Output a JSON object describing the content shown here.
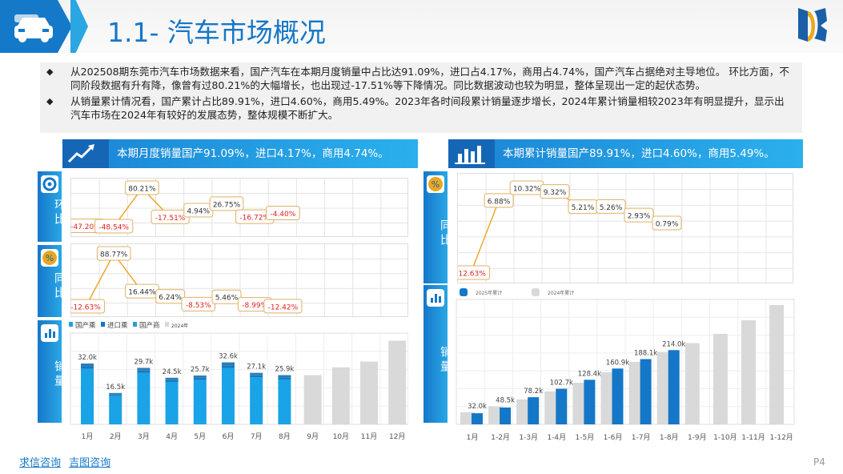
{
  "page_title": "1.1- 汽车市场概况",
  "summary": [
    "从202508期东莞市汽车市场数据来看，国产汽车在本期月度销量中占比达91.09%，进口占4.17%，商用占4.74%，国产汽车占据绝对主导地位。 环比方面，不同阶段数据有升有降，像曾有过80.21%的大幅增长，也出现过-17.51%等下降情况。同比数据波动也较为明显，整体呈现出一定的起伏态势。",
    "从销量累计情况看，国产累计占比89.91%，进口4.60%，商用5.49%。2023年各时间段累计销量逐步增长，2024年累计销量相较2023年有明显提升，显示出汽车市场在2024年有较好的发展态势，整体规模不断扩大。"
  ],
  "left_banner": "本期月度销量国产91.09%，进口4.17%，商用4.74%。",
  "right_banner": "本期累计销量国产89.91%，进口4.60%，商用5.49%。",
  "side_labels": {
    "huanbi": "环比",
    "tongbi": "同比",
    "xiaoliang": "销量",
    "r_tongbi": "同比",
    "r_xiaoliang": "销量"
  },
  "footer": {
    "link1": "求信咨询",
    "link2": "吉图咨询",
    "page": "P4"
  },
  "colors": {
    "primary": "#1577c7",
    "cyan": "#1aa3e6",
    "bar2024": "#d9d9d9",
    "negative": "#e02020"
  },
  "chart_data": [
    {
      "type": "line",
      "id": "monthly_huanbi",
      "categories": [
        "1月",
        "2月",
        "3月",
        "4月",
        "5月",
        "6月",
        "7月",
        "8月"
      ],
      "values": [
        -47.2,
        -48.54,
        80.21,
        -17.51,
        4.94,
        26.75,
        -16.72,
        -4.4
      ],
      "labels": [
        "-47.20%",
        "-48.54%",
        "80.21%",
        "-17.51%",
        "4.94%",
        "26.75%",
        "-16.72%",
        "-4.40%"
      ]
    },
    {
      "type": "line",
      "id": "monthly_tongbi",
      "categories": [
        "1月",
        "2月",
        "3月",
        "4月",
        "5月",
        "6月",
        "7月",
        "8月"
      ],
      "values": [
        -12.63,
        88.77,
        16.44,
        6.24,
        -8.53,
        5.46,
        -8.99,
        -12.42
      ],
      "labels": [
        "-12.63%",
        "88.77%",
        "16.44%",
        "6.24%",
        "-8.53%",
        "5.46%",
        "-8.99%",
        "-12.42%"
      ]
    },
    {
      "type": "bar",
      "id": "monthly_sales",
      "categories": [
        "1月",
        "2月",
        "3月",
        "4月",
        "5月",
        "6月",
        "7月",
        "8月",
        "9月",
        "10月",
        "11月",
        "12月"
      ],
      "legend": [
        "国产乘",
        "进口乘",
        "国产商",
        "2024年"
      ],
      "series": [
        {
          "name": "国产乘",
          "values": [
            29.2,
            15.0,
            27.1,
            22.3,
            23.4,
            29.7,
            24.7,
            23.6,
            null,
            null,
            null,
            null
          ]
        },
        {
          "name": "进口乘",
          "values": [
            1.3,
            0.7,
            1.2,
            1.0,
            1.1,
            1.3,
            1.1,
            1.1,
            null,
            null,
            null,
            null
          ]
        },
        {
          "name": "国产商",
          "values": [
            1.5,
            0.8,
            1.4,
            1.2,
            1.2,
            1.6,
            1.3,
            1.2,
            null,
            null,
            null,
            null
          ]
        },
        {
          "name": "2024年",
          "values": [
            null,
            null,
            null,
            null,
            null,
            null,
            null,
            null,
            25.9,
            30.0,
            33.0,
            44.0
          ]
        }
      ],
      "totals": [
        "32.0k",
        "16.5k",
        "29.7k",
        "24.5k",
        "25.7k",
        "32.6k",
        "27.1k",
        "25.9k"
      ]
    },
    {
      "type": "line",
      "id": "cumulative_tongbi",
      "categories": [
        "1月",
        "1-2月",
        "1-3月",
        "1-4月",
        "1-5月",
        "1-6月",
        "1-7月",
        "1-8月"
      ],
      "values": [
        -12.63,
        6.88,
        10.32,
        9.32,
        5.21,
        5.26,
        2.93,
        0.79
      ],
      "labels": [
        "-12.63%",
        "6.88%",
        "10.32%",
        "9.32%",
        "5.21%",
        "5.26%",
        "2.93%",
        "0.79%"
      ]
    },
    {
      "type": "bar",
      "id": "cumulative_sales",
      "categories": [
        "1月",
        "1-2月",
        "1-3月",
        "1-4月",
        "1-5月",
        "1-6月",
        "1-7月",
        "1-8月",
        "1-9月",
        "1-10月",
        "1-11月",
        "1-12月"
      ],
      "legend": [
        "2025年累计",
        "2024年累计"
      ],
      "series": [
        {
          "name": "2025年累计",
          "values": [
            32.0,
            48.5,
            78.2,
            102.7,
            128.4,
            160.9,
            188.1,
            214.0,
            null,
            null,
            null,
            null
          ]
        },
        {
          "name": "2024年累计",
          "values": [
            35.0,
            52.0,
            72.0,
            95.0,
            120.0,
            150.0,
            180.0,
            209.0,
            234.0,
            261.0,
            300.0,
            344.0
          ]
        }
      ],
      "labels": [
        "32.0k",
        "48.5k",
        "78.2k",
        "102.7k",
        "128.4k",
        "160.9k",
        "188.1k",
        "214.0k"
      ]
    }
  ]
}
